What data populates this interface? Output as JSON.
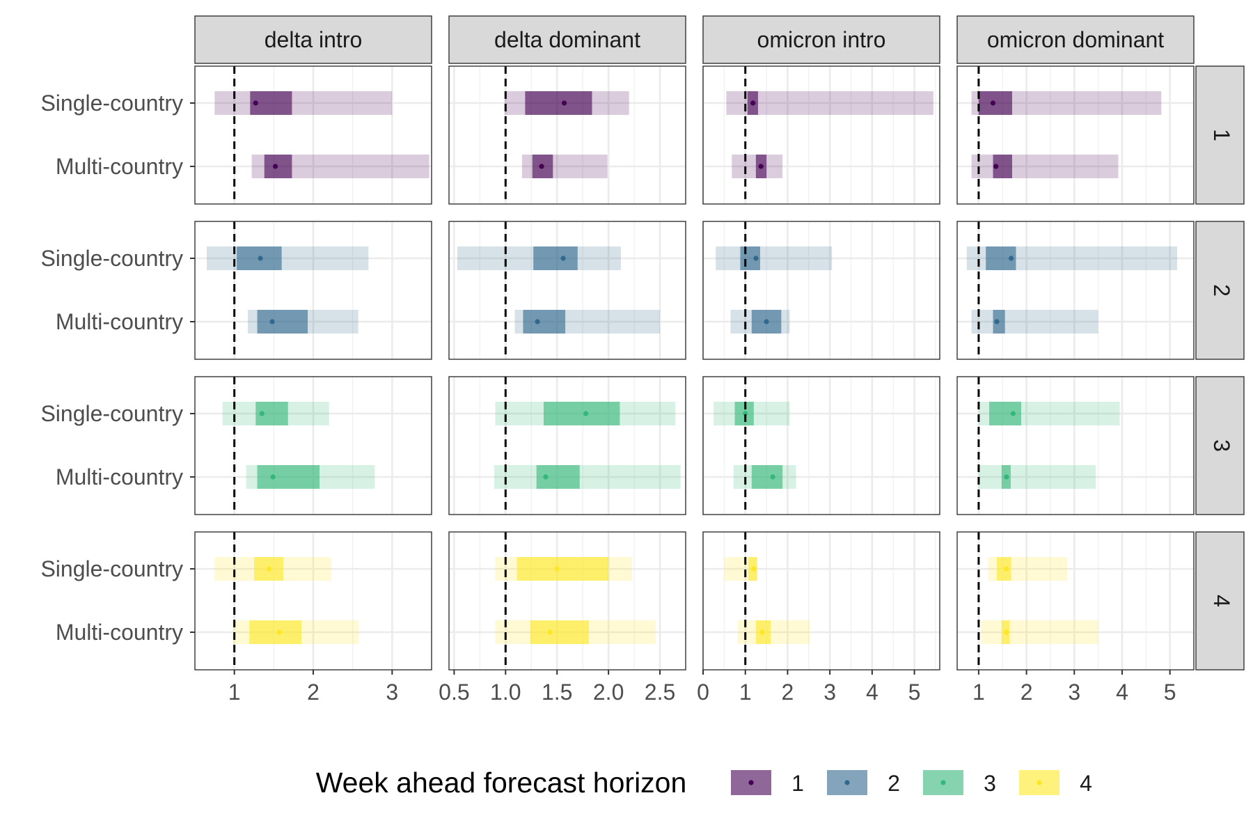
{
  "chart_data": {
    "type": "interval-facet",
    "columns": [
      {
        "label": "delta intro",
        "xlim": [
          0.5,
          3.5
        ],
        "ticks": [
          1,
          2,
          3
        ],
        "tick_labels": [
          "1",
          "2",
          "3"
        ]
      },
      {
        "label": "delta dominant",
        "xlim": [
          0.45,
          2.75
        ],
        "ticks": [
          0.5,
          1.0,
          1.5,
          2.0,
          2.5
        ],
        "tick_labels": [
          "0.5",
          "1.0",
          "1.5",
          "2.0",
          "2.5"
        ]
      },
      {
        "label": "omicron intro",
        "xlim": [
          0,
          5.6
        ],
        "ticks": [
          0,
          1,
          2,
          3,
          4,
          5
        ],
        "tick_labels": [
          "0",
          "1",
          "2",
          "3",
          "4",
          "5"
        ]
      },
      {
        "label": "omicron dominant",
        "xlim": [
          0.55,
          5.5
        ],
        "ticks": [
          1,
          2,
          3,
          4,
          5
        ],
        "tick_labels": [
          "1",
          "2",
          "3",
          "4",
          "5"
        ]
      }
    ],
    "rows": [
      "1",
      "2",
      "3",
      "4"
    ],
    "y_categories": [
      "Single-country",
      "Multi-country"
    ],
    "reference_line_x": 1,
    "colors": [
      "#440154",
      "#31688e",
      "#35b779",
      "#fde725"
    ],
    "legend": {
      "title": "Week ahead forecast horizon",
      "entries": [
        "1",
        "2",
        "3",
        "4"
      ],
      "position": "bottom"
    },
    "grid": true,
    "intervals": [
      [
        {
          "Single-country": {
            "outer": [
              0.75,
              3.0
            ],
            "inner": [
              1.2,
              1.73
            ],
            "point": 1.27
          },
          "Multi-country": {
            "outer": [
              1.22,
              3.47
            ],
            "inner": [
              1.38,
              1.73
            ],
            "point": 1.52
          }
        },
        {
          "Single-country": {
            "outer": [
              0.99,
              2.2
            ],
            "inner": [
              1.19,
              1.84
            ],
            "point": 1.57
          },
          "Multi-country": {
            "outer": [
              1.16,
              1.99
            ],
            "inner": [
              1.26,
              1.46
            ],
            "point": 1.35
          }
        },
        {
          "Single-country": {
            "outer": [
              0.55,
              5.45
            ],
            "inner": [
              1.05,
              1.3
            ],
            "point": 1.18
          },
          "Multi-country": {
            "outer": [
              0.68,
              1.88
            ],
            "inner": [
              1.25,
              1.5
            ],
            "point": 1.37
          }
        },
        {
          "Single-country": {
            "outer": [
              0.85,
              4.82
            ],
            "inner": [
              1.0,
              1.7
            ],
            "point": 1.3
          },
          "Multi-country": {
            "outer": [
              0.85,
              3.92
            ],
            "inner": [
              1.3,
              1.7
            ],
            "point": 1.36
          }
        }
      ],
      [
        {
          "Single-country": {
            "outer": [
              0.65,
              2.7
            ],
            "inner": [
              1.03,
              1.6
            ],
            "point": 1.33
          },
          "Multi-country": {
            "outer": [
              1.17,
              2.57
            ],
            "inner": [
              1.29,
              1.93
            ],
            "point": 1.48
          }
        },
        {
          "Single-country": {
            "outer": [
              0.53,
              2.12
            ],
            "inner": [
              1.27,
              1.7
            ],
            "point": 1.56
          },
          "Multi-country": {
            "outer": [
              1.09,
              2.5
            ],
            "inner": [
              1.17,
              1.58
            ],
            "point": 1.31
          }
        },
        {
          "Single-country": {
            "outer": [
              0.3,
              3.05
            ],
            "inner": [
              0.88,
              1.35
            ],
            "point": 1.25
          },
          "Multi-country": {
            "outer": [
              0.65,
              2.05
            ],
            "inner": [
              1.15,
              1.85
            ],
            "point": 1.5
          }
        },
        {
          "Single-country": {
            "outer": [
              0.75,
              5.15
            ],
            "inner": [
              1.15,
              1.78
            ],
            "point": 1.68
          },
          "Multi-country": {
            "outer": [
              0.85,
              3.5
            ],
            "inner": [
              1.3,
              1.55
            ],
            "point": 1.38
          }
        }
      ],
      [
        {
          "Single-country": {
            "outer": [
              0.85,
              2.2
            ],
            "inner": [
              1.27,
              1.68
            ],
            "point": 1.35
          },
          "Multi-country": {
            "outer": [
              1.15,
              2.78
            ],
            "inner": [
              1.29,
              2.08
            ],
            "point": 1.49
          }
        },
        {
          "Single-country": {
            "outer": [
              0.9,
              2.65
            ],
            "inner": [
              1.37,
              2.11
            ],
            "point": 1.78
          },
          "Multi-country": {
            "outer": [
              0.89,
              2.7
            ],
            "inner": [
              1.3,
              1.72
            ],
            "point": 1.39
          }
        },
        {
          "Single-country": {
            "outer": [
              0.25,
              2.05
            ],
            "inner": [
              0.75,
              1.2
            ],
            "point": 1.0
          },
          "Multi-country": {
            "outer": [
              0.72,
              2.2
            ],
            "inner": [
              1.15,
              1.88
            ],
            "point": 1.65
          }
        },
        {
          "Single-country": {
            "outer": [
              1.0,
              3.95
            ],
            "inner": [
              1.22,
              1.89
            ],
            "point": 1.72
          },
          "Multi-country": {
            "outer": [
              1.0,
              3.45
            ],
            "inner": [
              1.48,
              1.67
            ],
            "point": 1.58
          }
        }
      ],
      [
        {
          "Single-country": {
            "outer": [
              0.75,
              2.23
            ],
            "inner": [
              1.25,
              1.62
            ],
            "point": 1.44
          },
          "Multi-country": {
            "outer": [
              0.98,
              2.58
            ],
            "inner": [
              1.19,
              1.85
            ],
            "point": 1.57
          }
        },
        {
          "Single-country": {
            "outer": [
              0.9,
              2.23
            ],
            "inner": [
              1.11,
              2.0
            ],
            "point": 1.5
          },
          "Multi-country": {
            "outer": [
              0.9,
              2.46
            ],
            "inner": [
              1.24,
              1.81
            ],
            "point": 1.43
          }
        },
        {
          "Single-country": {
            "outer": [
              0.5,
              1.28
            ],
            "inner": [
              1.07,
              1.28
            ],
            "point": 1.2
          },
          "Multi-country": {
            "outer": [
              0.82,
              2.52
            ],
            "inner": [
              1.25,
              1.6
            ],
            "point": 1.4
          }
        },
        {
          "Single-country": {
            "outer": [
              1.2,
              2.85
            ],
            "inner": [
              1.38,
              1.68
            ],
            "point": 1.58
          },
          "Multi-country": {
            "outer": [
              1.05,
              3.5
            ],
            "inner": [
              1.48,
              1.65
            ],
            "point": 1.58
          }
        }
      ]
    ]
  }
}
